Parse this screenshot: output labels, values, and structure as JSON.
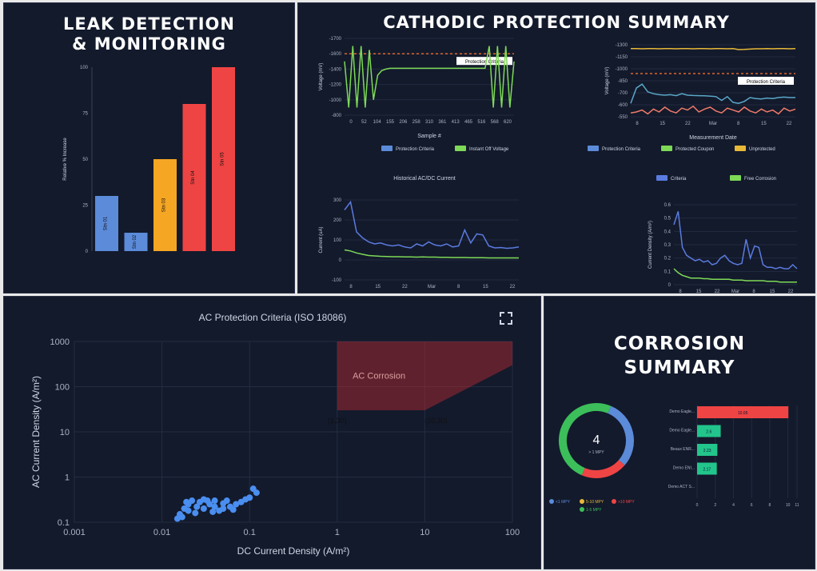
{
  "panels": {
    "leak_title_1": "LEAK DETECTION",
    "leak_title_2": "& MONITORING",
    "cp_title": "CATHODIC PROTECTION SUMMARY",
    "corr_title_1": "CORROSION",
    "corr_title_2": "SUMMARY"
  },
  "colors": {
    "blue": "#5b8bd9",
    "green": "#7ed957",
    "orange": "#f5a623",
    "red": "#ef4444",
    "teal": "#22c58b",
    "salmon": "#f07a6a",
    "cyan": "#5aa8c8",
    "yellow": "#e8b838"
  },
  "chart_data": [
    {
      "id": "leak",
      "type": "bar",
      "ylabel": "Relative % Increase",
      "ylim": [
        0,
        100
      ],
      "yticks": [
        "0",
        "25",
        "50",
        "75",
        "100"
      ],
      "categories": [
        "Stn 01",
        "Stn 02",
        "Stn 03",
        "Stn 04",
        "Stn 05"
      ],
      "values": [
        30,
        10,
        50,
        80,
        100
      ],
      "bar_colors": [
        "#5b8bd9",
        "#5b8bd9",
        "#f5a623",
        "#ef4444",
        "#ef4444"
      ]
    },
    {
      "id": "cp_instant",
      "type": "line",
      "xlabel": "Sample #",
      "ylabel": "Voltage (mV)",
      "ylim": [
        -1800,
        -800
      ],
      "yticks": [
        "-1700",
        "-1600",
        "-1400",
        "-1200",
        "-1000",
        "-800"
      ],
      "xticks": [
        "0",
        "52",
        "104",
        "155",
        "206",
        "258",
        "310",
        "361",
        "413",
        "465",
        "516",
        "568",
        "620"
      ],
      "legend": [
        "Protection Criteria",
        "Instant Off Voltage"
      ],
      "annotation": "Protection Criteria",
      "criteria": -1000,
      "series": [
        {
          "name": "Instant Off Voltage",
          "values": [
            -1100,
            -1700,
            -900,
            -1700,
            -900,
            -1700,
            -950,
            -1600,
            -1280,
            -1220,
            -1200,
            -1190,
            -1190,
            -1190,
            -1190,
            -1190,
            -1190,
            -1190,
            -1190,
            -1190,
            -1190,
            -1190,
            -1190,
            -1190,
            -1190,
            -1190,
            -1190,
            -1190,
            -1190,
            -1190,
            -1190,
            -1190,
            -1190,
            -1190,
            -1190,
            -900,
            -1700,
            -900,
            -1700,
            -900,
            -1700,
            -1100
          ]
        }
      ]
    },
    {
      "id": "cp_coupon",
      "type": "line",
      "xlabel": "Measurement Date",
      "ylabel": "Voltage (mV)",
      "ylim": [
        -1300,
        -550
      ],
      "yticks": [
        "-1300",
        "-1150",
        "-1000",
        "-850",
        "-700",
        "-600",
        "-550"
      ],
      "xticks": [
        "8",
        "15",
        "22",
        "Mar",
        "8",
        "15",
        "22"
      ],
      "legend": [
        "Protection Criteria",
        "Protected Coupon",
        "Unprotected"
      ],
      "annotation": "Protection Criteria",
      "criteria": -850,
      "series": [
        {
          "name": "Unprotected",
          "color": "#f07a6a",
          "values": [
            -1260,
            -1250,
            -1230,
            -1270,
            -1220,
            -1250,
            -1200,
            -1240,
            -1260,
            -1210,
            -1230,
            -1190,
            -1250,
            -1220,
            -1200,
            -1240,
            -1260,
            -1210,
            -1230,
            -1250,
            -1200,
            -1240,
            -1260,
            -1220,
            -1250,
            -1230,
            -1270,
            -1210,
            -1240,
            -1220
          ]
        },
        {
          "name": "Protected Coupon",
          "color": "#5aa8c8",
          "values": [
            -1160,
            -1000,
            -960,
            -1040,
            -1060,
            -1070,
            -1075,
            -1070,
            -1080,
            -1060,
            -1075,
            -1078,
            -1080,
            -1082,
            -1085,
            -1090,
            -1130,
            -1090,
            -1150,
            -1160,
            -1140,
            -1100,
            -1110,
            -1115,
            -1105,
            -1110,
            -1100,
            -1095,
            -1100,
            -1100
          ]
        },
        {
          "name": "Protection Criteria",
          "color": "#e8b838",
          "values": [
            -590,
            -590,
            -592,
            -590,
            -590,
            -592,
            -590,
            -590,
            -592,
            -590,
            -590,
            -592,
            -590,
            -590,
            -592,
            -590,
            -590,
            -592,
            -590,
            -600,
            -598,
            -595,
            -592,
            -592,
            -590,
            -592,
            -590,
            -590,
            -592,
            -590
          ]
        }
      ]
    },
    {
      "id": "acdc",
      "type": "line",
      "title": "Historical AC/DC Current",
      "ylabel": "Current (uA)",
      "ylim": [
        -100,
        300
      ],
      "yticks": [
        "300",
        "200",
        "100",
        "0",
        "-100"
      ],
      "xticks": [
        "8",
        "15",
        "22",
        "Mar",
        "8",
        "15",
        "22"
      ],
      "series": [
        {
          "name": "AC",
          "color": "#5b7be0",
          "values": [
            250,
            290,
            140,
            110,
            90,
            80,
            85,
            75,
            70,
            75,
            65,
            60,
            80,
            70,
            90,
            75,
            70,
            80,
            65,
            70,
            150,
            85,
            130,
            125,
            70,
            60,
            62,
            58,
            60,
            65
          ]
        },
        {
          "name": "DC",
          "color": "#7ed957",
          "values": [
            50,
            45,
            35,
            28,
            22,
            20,
            18,
            17,
            16,
            16,
            15,
            15,
            14,
            15,
            14,
            14,
            13,
            13,
            12,
            12,
            12,
            11,
            11,
            11,
            10,
            10,
            10,
            10,
            10,
            10
          ]
        }
      ]
    },
    {
      "id": "density",
      "type": "line",
      "ylabel": "Current Density (A/m²)",
      "ylim": [
        0,
        0.6
      ],
      "legend": [
        "Criteria",
        "Free Corrosion"
      ],
      "yticks": [
        "0.6",
        "0.5",
        "0.4",
        "0.3",
        "0.2",
        "0.1",
        "0"
      ],
      "xticks": [
        "8",
        "15",
        "22",
        "Mar",
        "8",
        "15",
        "22"
      ],
      "series": [
        {
          "name": "Criteria",
          "color": "#5b7be0",
          "values": [
            0.45,
            0.55,
            0.28,
            0.22,
            0.2,
            0.18,
            0.19,
            0.17,
            0.18,
            0.15,
            0.16,
            0.2,
            0.22,
            0.18,
            0.16,
            0.15,
            0.16,
            0.34,
            0.2,
            0.29,
            0.28,
            0.15,
            0.13,
            0.13,
            0.12,
            0.13,
            0.12,
            0.12,
            0.15,
            0.12
          ]
        },
        {
          "name": "Free Corrosion",
          "color": "#7ed957",
          "values": [
            0.12,
            0.09,
            0.07,
            0.06,
            0.05,
            0.05,
            0.05,
            0.045,
            0.045,
            0.04,
            0.04,
            0.04,
            0.04,
            0.04,
            0.035,
            0.035,
            0.035,
            0.03,
            0.03,
            0.03,
            0.03,
            0.03,
            0.025,
            0.025,
            0.025,
            0.02,
            0.02,
            0.02,
            0.02,
            0.02
          ]
        }
      ]
    },
    {
      "id": "iso",
      "type": "scatter",
      "title": "AC Protection Criteria (ISO 18086)",
      "xlabel": "DC Current Density (A/m²)",
      "ylabel": "AC Current Density (A/m²)",
      "xscale": "log",
      "yscale": "log",
      "xlim": [
        0.001,
        100
      ],
      "ylim": [
        0.1,
        1000
      ],
      "xticks": [
        "0.001",
        "0.01",
        "0.1",
        "1",
        "10",
        "100"
      ],
      "yticks": [
        "1000",
        "100",
        "10",
        "1",
        "0.1"
      ],
      "region": {
        "label": "AC Corrosion",
        "points": [
          [
            1,
            1000
          ],
          [
            100,
            1000
          ],
          [
            100,
            300
          ],
          [
            10,
            30
          ],
          [
            1,
            30
          ]
        ]
      },
      "region_labels": [
        "(1,30)",
        "(10,30)"
      ],
      "points": [
        [
          0.015,
          0.12
        ],
        [
          0.016,
          0.15
        ],
        [
          0.018,
          0.2
        ],
        [
          0.02,
          0.25
        ],
        [
          0.02,
          0.18
        ],
        [
          0.022,
          0.3
        ],
        [
          0.025,
          0.22
        ],
        [
          0.027,
          0.28
        ],
        [
          0.03,
          0.2
        ],
        [
          0.03,
          0.32
        ],
        [
          0.035,
          0.25
        ],
        [
          0.04,
          0.22
        ],
        [
          0.04,
          0.3
        ],
        [
          0.045,
          0.18
        ],
        [
          0.05,
          0.2
        ],
        [
          0.05,
          0.26
        ],
        [
          0.06,
          0.22
        ],
        [
          0.07,
          0.25
        ],
        [
          0.08,
          0.28
        ],
        [
          0.09,
          0.32
        ],
        [
          0.1,
          0.35
        ],
        [
          0.11,
          0.55
        ],
        [
          0.12,
          0.45
        ],
        [
          0.017,
          0.13
        ],
        [
          0.024,
          0.16
        ],
        [
          0.033,
          0.3
        ],
        [
          0.038,
          0.17
        ],
        [
          0.055,
          0.3
        ],
        [
          0.065,
          0.19
        ],
        [
          0.019,
          0.28
        ]
      ]
    },
    {
      "id": "donut",
      "type": "pie",
      "center_value": "4",
      "center_label": "> 1 MPY",
      "slices": [
        {
          "label": "<1 MPY",
          "value": 30,
          "color": "#5b8bd9"
        },
        {
          "label": "5-10 MPY",
          "value": 0,
          "color": "#e8b838"
        },
        {
          "label": ">10 MPY",
          "value": 20,
          "color": "#ef4444"
        },
        {
          "label": "1-5 MPY",
          "value": 50,
          "color": "#3cbf5a"
        }
      ]
    },
    {
      "id": "rates",
      "type": "bar",
      "orientation": "horizontal",
      "xlim": [
        0,
        11
      ],
      "xticks": [
        "0",
        "2",
        "4",
        "6",
        "8",
        "10",
        "11"
      ],
      "categories": [
        "Demo Eagle...",
        "Demo Eagle...",
        "Beaux ENR...",
        "Demo ENI...",
        "Demo ACT S..."
      ],
      "values": [
        10.05,
        2.6,
        2.23,
        2.17,
        0
      ],
      "value_labels": [
        "10.05",
        "2.6",
        "2.23",
        "2.17",
        ""
      ],
      "bar_colors": [
        "#ef4444",
        "#22c58b",
        "#22c58b",
        "#22c58b",
        "#22c58b"
      ]
    }
  ]
}
